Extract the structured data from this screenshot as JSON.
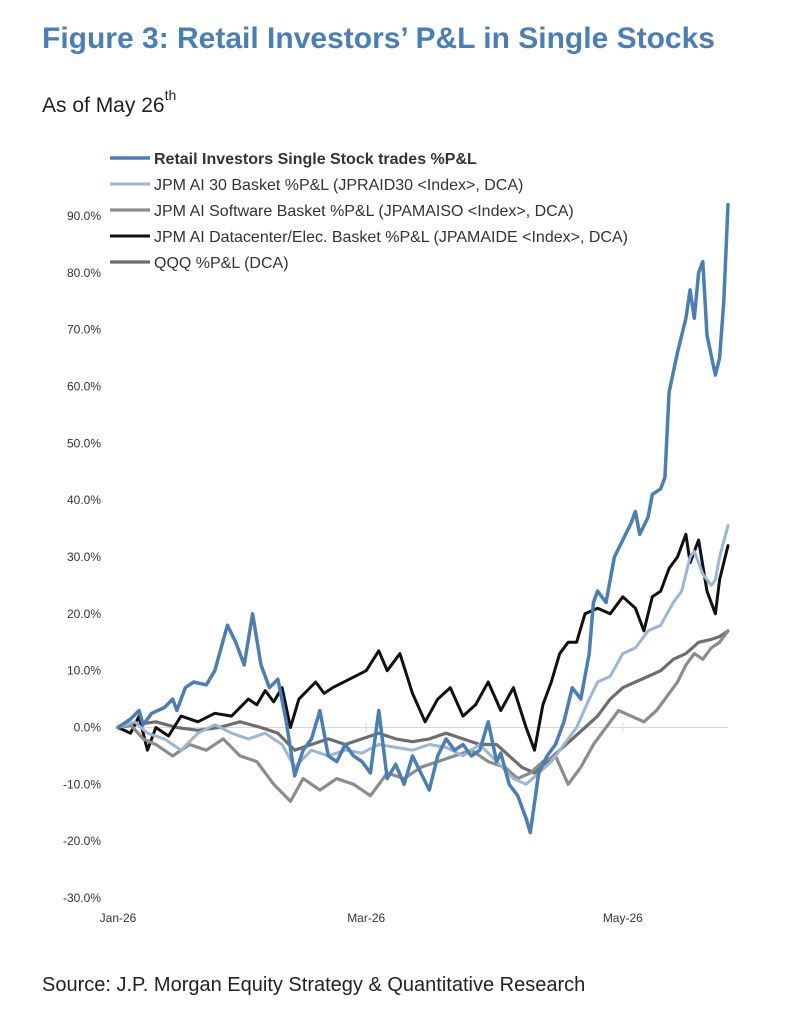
{
  "header": {
    "title": "Figure 3: Retail Investors’ P&L in Single Stocks",
    "subtitle_main": "As of May 26",
    "subtitle_sup": "th"
  },
  "footer": {
    "source": "Source: J.P. Morgan Equity Strategy & Quantitative Research"
  },
  "chart_data": {
    "type": "line",
    "title": "",
    "xlabel": "",
    "ylabel": "",
    "legend_placement": "top-left",
    "grid": false,
    "ylim": [
      -30,
      90
    ],
    "yticks": [
      -30,
      -20,
      -10,
      0,
      10,
      20,
      30,
      40,
      50,
      60,
      70,
      80,
      90
    ],
    "ytick_labels": [
      "-30.0%",
      "-20.0%",
      "-10.0%",
      "0.0%",
      "10.0%",
      "20.0%",
      "30.0%",
      "40.0%",
      "50.0%",
      "60.0%",
      "70.0%",
      "80.0%",
      "90.0%"
    ],
    "xlim": [
      "2026-01-01",
      "2026-05-26"
    ],
    "xticks": [
      {
        "label": "Jan-26",
        "date": "2026-01-01"
      },
      {
        "label": "Mar-26",
        "date": "2026-03-01"
      },
      {
        "label": "May-26",
        "date": "2026-05-01"
      }
    ],
    "series": [
      {
        "name": "Retail Investors Single Stock trades %P&L",
        "color": "#4a7fb5",
        "width": 3.5,
        "bold_label": true,
        "points": [
          [
            "2026-01-01",
            0
          ],
          [
            "2026-01-04",
            1.5
          ],
          [
            "2026-01-06",
            3
          ],
          [
            "2026-01-07",
            0.5
          ],
          [
            "2026-01-09",
            2.5
          ],
          [
            "2026-01-12",
            3.5
          ],
          [
            "2026-01-14",
            5
          ],
          [
            "2026-01-15",
            3
          ],
          [
            "2026-01-17",
            7
          ],
          [
            "2026-01-19",
            8
          ],
          [
            "2026-01-22",
            7.5
          ],
          [
            "2026-01-24",
            10
          ],
          [
            "2026-01-27",
            18
          ],
          [
            "2026-01-29",
            15
          ],
          [
            "2026-01-31",
            11
          ],
          [
            "2026-02-02",
            20
          ],
          [
            "2026-02-04",
            11
          ],
          [
            "2026-02-06",
            7
          ],
          [
            "2026-02-08",
            8.5
          ],
          [
            "2026-02-10",
            1
          ],
          [
            "2026-02-12",
            -8.5
          ],
          [
            "2026-02-14",
            -4
          ],
          [
            "2026-02-16",
            -2
          ],
          [
            "2026-02-18",
            3
          ],
          [
            "2026-02-20",
            -5
          ],
          [
            "2026-02-22",
            -6
          ],
          [
            "2026-02-24",
            -3
          ],
          [
            "2026-02-26",
            -5
          ],
          [
            "2026-02-28",
            -6
          ],
          [
            "2026-03-02",
            -8
          ],
          [
            "2026-03-04",
            3
          ],
          [
            "2026-03-06",
            -9
          ],
          [
            "2026-03-08",
            -6.5
          ],
          [
            "2026-03-10",
            -10
          ],
          [
            "2026-03-12",
            -5
          ],
          [
            "2026-03-14",
            -8
          ],
          [
            "2026-03-16",
            -11
          ],
          [
            "2026-03-18",
            -5
          ],
          [
            "2026-03-20",
            -2
          ],
          [
            "2026-03-22",
            -4
          ],
          [
            "2026-03-24",
            -3
          ],
          [
            "2026-03-26",
            -5
          ],
          [
            "2026-03-28",
            -4
          ],
          [
            "2026-03-30",
            1
          ],
          [
            "2026-04-01",
            -6
          ],
          [
            "2026-04-02",
            -4.5
          ],
          [
            "2026-04-04",
            -10
          ],
          [
            "2026-04-06",
            -12
          ],
          [
            "2026-04-08",
            -16
          ],
          [
            "2026-04-09",
            -18.5
          ],
          [
            "2026-04-11",
            -8
          ],
          [
            "2026-04-13",
            -5
          ],
          [
            "2026-04-15",
            -3
          ],
          [
            "2026-04-17",
            1
          ],
          [
            "2026-04-19",
            7
          ],
          [
            "2026-04-21",
            5
          ],
          [
            "2026-04-23",
            13
          ],
          [
            "2026-04-24",
            22
          ],
          [
            "2026-04-25",
            24
          ],
          [
            "2026-04-27",
            22
          ],
          [
            "2026-04-29",
            30
          ],
          [
            "2026-05-01",
            33
          ],
          [
            "2026-05-03",
            36
          ],
          [
            "2026-05-04",
            38
          ],
          [
            "2026-05-05",
            34
          ],
          [
            "2026-05-07",
            37
          ],
          [
            "2026-05-08",
            41
          ],
          [
            "2026-05-10",
            42
          ],
          [
            "2026-05-11",
            44
          ],
          [
            "2026-05-12",
            59
          ],
          [
            "2026-05-14",
            66
          ],
          [
            "2026-05-16",
            72
          ],
          [
            "2026-05-17",
            77
          ],
          [
            "2026-05-18",
            72
          ],
          [
            "2026-05-19",
            80
          ],
          [
            "2026-05-20",
            82
          ],
          [
            "2026-05-21",
            69
          ],
          [
            "2026-05-23",
            62
          ],
          [
            "2026-05-24",
            65
          ],
          [
            "2026-05-25",
            75
          ],
          [
            "2026-05-26",
            92
          ]
        ]
      },
      {
        "name": "JPM AI 30 Basket %P&L (JPRAID30 <Index>, DCA)",
        "color": "#9ab7d3",
        "width": 3,
        "bold_label": false,
        "points": [
          [
            "2026-01-01",
            0
          ],
          [
            "2026-01-05",
            1
          ],
          [
            "2026-01-08",
            -1
          ],
          [
            "2026-01-12",
            -2
          ],
          [
            "2026-01-16",
            -4
          ],
          [
            "2026-01-20",
            -1
          ],
          [
            "2026-01-24",
            0.5
          ],
          [
            "2026-01-28",
            -1
          ],
          [
            "2026-02-01",
            -2
          ],
          [
            "2026-02-05",
            -1
          ],
          [
            "2026-02-09",
            -3
          ],
          [
            "2026-02-12",
            -7
          ],
          [
            "2026-02-16",
            -4
          ],
          [
            "2026-02-20",
            -5
          ],
          [
            "2026-02-24",
            -4
          ],
          [
            "2026-02-28",
            -4.5
          ],
          [
            "2026-03-04",
            -3
          ],
          [
            "2026-03-08",
            -3.5
          ],
          [
            "2026-03-12",
            -4
          ],
          [
            "2026-03-16",
            -3
          ],
          [
            "2026-03-20",
            -3.5
          ],
          [
            "2026-03-24",
            -5
          ],
          [
            "2026-03-28",
            -3
          ],
          [
            "2026-04-01",
            -6
          ],
          [
            "2026-04-05",
            -9
          ],
          [
            "2026-04-08",
            -10
          ],
          [
            "2026-04-11",
            -8
          ],
          [
            "2026-04-14",
            -6
          ],
          [
            "2026-04-17",
            -3
          ],
          [
            "2026-04-20",
            0
          ],
          [
            "2026-04-23",
            5
          ],
          [
            "2026-04-25",
            8
          ],
          [
            "2026-04-28",
            9
          ],
          [
            "2026-05-01",
            13
          ],
          [
            "2026-05-04",
            14
          ],
          [
            "2026-05-07",
            17
          ],
          [
            "2026-05-10",
            18
          ],
          [
            "2026-05-13",
            22
          ],
          [
            "2026-05-15",
            24
          ],
          [
            "2026-05-17",
            30
          ],
          [
            "2026-05-18",
            31
          ],
          [
            "2026-05-20",
            27
          ],
          [
            "2026-05-22",
            25
          ],
          [
            "2026-05-23",
            26
          ],
          [
            "2026-05-24",
            30
          ],
          [
            "2026-05-26",
            35.5
          ]
        ]
      },
      {
        "name": "JPM AI Software Basket %P&L (JPAMAISO <Index>, DCA)",
        "color": "#8c8c8c",
        "width": 3.2,
        "bold_label": false,
        "points": [
          [
            "2026-01-01",
            0
          ],
          [
            "2026-01-04",
            0.5
          ],
          [
            "2026-01-07",
            -2
          ],
          [
            "2026-01-10",
            -3
          ],
          [
            "2026-01-14",
            -5
          ],
          [
            "2026-01-18",
            -3
          ],
          [
            "2026-01-22",
            -4
          ],
          [
            "2026-01-26",
            -2
          ],
          [
            "2026-01-30",
            -5
          ],
          [
            "2026-02-03",
            -6
          ],
          [
            "2026-02-07",
            -10
          ],
          [
            "2026-02-11",
            -13
          ],
          [
            "2026-02-14",
            -9
          ],
          [
            "2026-02-18",
            -11
          ],
          [
            "2026-02-22",
            -9
          ],
          [
            "2026-02-26",
            -10
          ],
          [
            "2026-03-02",
            -12
          ],
          [
            "2026-03-06",
            -8
          ],
          [
            "2026-03-10",
            -9
          ],
          [
            "2026-03-14",
            -7
          ],
          [
            "2026-03-18",
            -6
          ],
          [
            "2026-03-22",
            -5
          ],
          [
            "2026-03-26",
            -4
          ],
          [
            "2026-03-30",
            -6
          ],
          [
            "2026-04-03",
            -7
          ],
          [
            "2026-04-06",
            -9
          ],
          [
            "2026-04-09",
            -8
          ],
          [
            "2026-04-12",
            -6
          ],
          [
            "2026-04-15",
            -5
          ],
          [
            "2026-04-18",
            -10
          ],
          [
            "2026-04-21",
            -7
          ],
          [
            "2026-04-24",
            -3
          ],
          [
            "2026-04-27",
            0
          ],
          [
            "2026-04-30",
            3
          ],
          [
            "2026-05-03",
            2
          ],
          [
            "2026-05-06",
            1
          ],
          [
            "2026-05-09",
            3
          ],
          [
            "2026-05-12",
            6
          ],
          [
            "2026-05-14",
            8
          ],
          [
            "2026-05-16",
            11
          ],
          [
            "2026-05-18",
            13
          ],
          [
            "2026-05-20",
            12
          ],
          [
            "2026-05-22",
            14
          ],
          [
            "2026-05-24",
            15
          ],
          [
            "2026-05-26",
            17
          ]
        ]
      },
      {
        "name": "JPM AI Datacenter/Elec. Basket %P&L (JPAMAIDE <Index>, DCA)",
        "color": "#111111",
        "width": 3,
        "bold_label": false,
        "points": [
          [
            "2026-01-01",
            0
          ],
          [
            "2026-01-04",
            -1
          ],
          [
            "2026-01-06",
            2
          ],
          [
            "2026-01-08",
            -4
          ],
          [
            "2026-01-10",
            0
          ],
          [
            "2026-01-13",
            -1.5
          ],
          [
            "2026-01-16",
            2
          ],
          [
            "2026-01-20",
            1
          ],
          [
            "2026-01-24",
            2.5
          ],
          [
            "2026-01-28",
            2
          ],
          [
            "2026-02-01",
            5
          ],
          [
            "2026-02-03",
            4
          ],
          [
            "2026-02-05",
            6.5
          ],
          [
            "2026-02-07",
            4.5
          ],
          [
            "2026-02-09",
            7
          ],
          [
            "2026-02-11",
            0
          ],
          [
            "2026-02-13",
            5
          ],
          [
            "2026-02-17",
            8
          ],
          [
            "2026-02-19",
            6
          ],
          [
            "2026-02-21",
            7
          ],
          [
            "2026-02-25",
            8.5
          ],
          [
            "2026-03-01",
            10
          ],
          [
            "2026-03-04",
            13.5
          ],
          [
            "2026-03-06",
            10
          ],
          [
            "2026-03-09",
            13
          ],
          [
            "2026-03-12",
            6
          ],
          [
            "2026-03-15",
            1
          ],
          [
            "2026-03-18",
            5
          ],
          [
            "2026-03-21",
            7
          ],
          [
            "2026-03-24",
            2
          ],
          [
            "2026-03-27",
            4
          ],
          [
            "2026-03-30",
            8
          ],
          [
            "2026-04-02",
            3
          ],
          [
            "2026-04-05",
            7
          ],
          [
            "2026-04-08",
            0
          ],
          [
            "2026-04-10",
            -4
          ],
          [
            "2026-04-12",
            4
          ],
          [
            "2026-04-14",
            8
          ],
          [
            "2026-04-16",
            13
          ],
          [
            "2026-04-18",
            15
          ],
          [
            "2026-04-20",
            15
          ],
          [
            "2026-04-22",
            20
          ],
          [
            "2026-04-25",
            21
          ],
          [
            "2026-04-28",
            20
          ],
          [
            "2026-05-01",
            23
          ],
          [
            "2026-05-04",
            21
          ],
          [
            "2026-05-06",
            17
          ],
          [
            "2026-05-08",
            23
          ],
          [
            "2026-05-10",
            24
          ],
          [
            "2026-05-12",
            28
          ],
          [
            "2026-05-14",
            30
          ],
          [
            "2026-05-16",
            34
          ],
          [
            "2026-05-17",
            29
          ],
          [
            "2026-05-19",
            33
          ],
          [
            "2026-05-21",
            24
          ],
          [
            "2026-05-23",
            20
          ],
          [
            "2026-05-24",
            26
          ],
          [
            "2026-05-26",
            32
          ]
        ]
      },
      {
        "name": "QQQ %P&L (DCA)",
        "color": "#6e6e6e",
        "width": 3.2,
        "bold_label": false,
        "points": [
          [
            "2026-01-01",
            0
          ],
          [
            "2026-01-05",
            0.5
          ],
          [
            "2026-01-10",
            1
          ],
          [
            "2026-01-15",
            0
          ],
          [
            "2026-01-20",
            -0.5
          ],
          [
            "2026-01-25",
            0
          ],
          [
            "2026-01-30",
            1
          ],
          [
            "2026-02-04",
            0
          ],
          [
            "2026-02-08",
            -1
          ],
          [
            "2026-02-12",
            -4
          ],
          [
            "2026-02-16",
            -3
          ],
          [
            "2026-02-20",
            -2
          ],
          [
            "2026-02-24",
            -3
          ],
          [
            "2026-02-28",
            -2
          ],
          [
            "2026-03-04",
            -1
          ],
          [
            "2026-03-08",
            -2
          ],
          [
            "2026-03-12",
            -2.5
          ],
          [
            "2026-03-16",
            -2
          ],
          [
            "2026-03-20",
            -1
          ],
          [
            "2026-03-24",
            -2
          ],
          [
            "2026-03-28",
            -3
          ],
          [
            "2026-04-01",
            -3
          ],
          [
            "2026-04-04",
            -5
          ],
          [
            "2026-04-07",
            -7
          ],
          [
            "2026-04-10",
            -8
          ],
          [
            "2026-04-13",
            -6
          ],
          [
            "2026-04-16",
            -4
          ],
          [
            "2026-04-19",
            -2
          ],
          [
            "2026-04-22",
            0
          ],
          [
            "2026-04-25",
            2
          ],
          [
            "2026-04-28",
            5
          ],
          [
            "2026-05-01",
            7
          ],
          [
            "2026-05-04",
            8
          ],
          [
            "2026-05-07",
            9
          ],
          [
            "2026-05-10",
            10
          ],
          [
            "2026-05-13",
            12
          ],
          [
            "2026-05-16",
            13
          ],
          [
            "2026-05-19",
            15
          ],
          [
            "2026-05-22",
            15.5
          ],
          [
            "2026-05-24",
            16
          ],
          [
            "2026-05-26",
            17
          ]
        ]
      }
    ]
  }
}
